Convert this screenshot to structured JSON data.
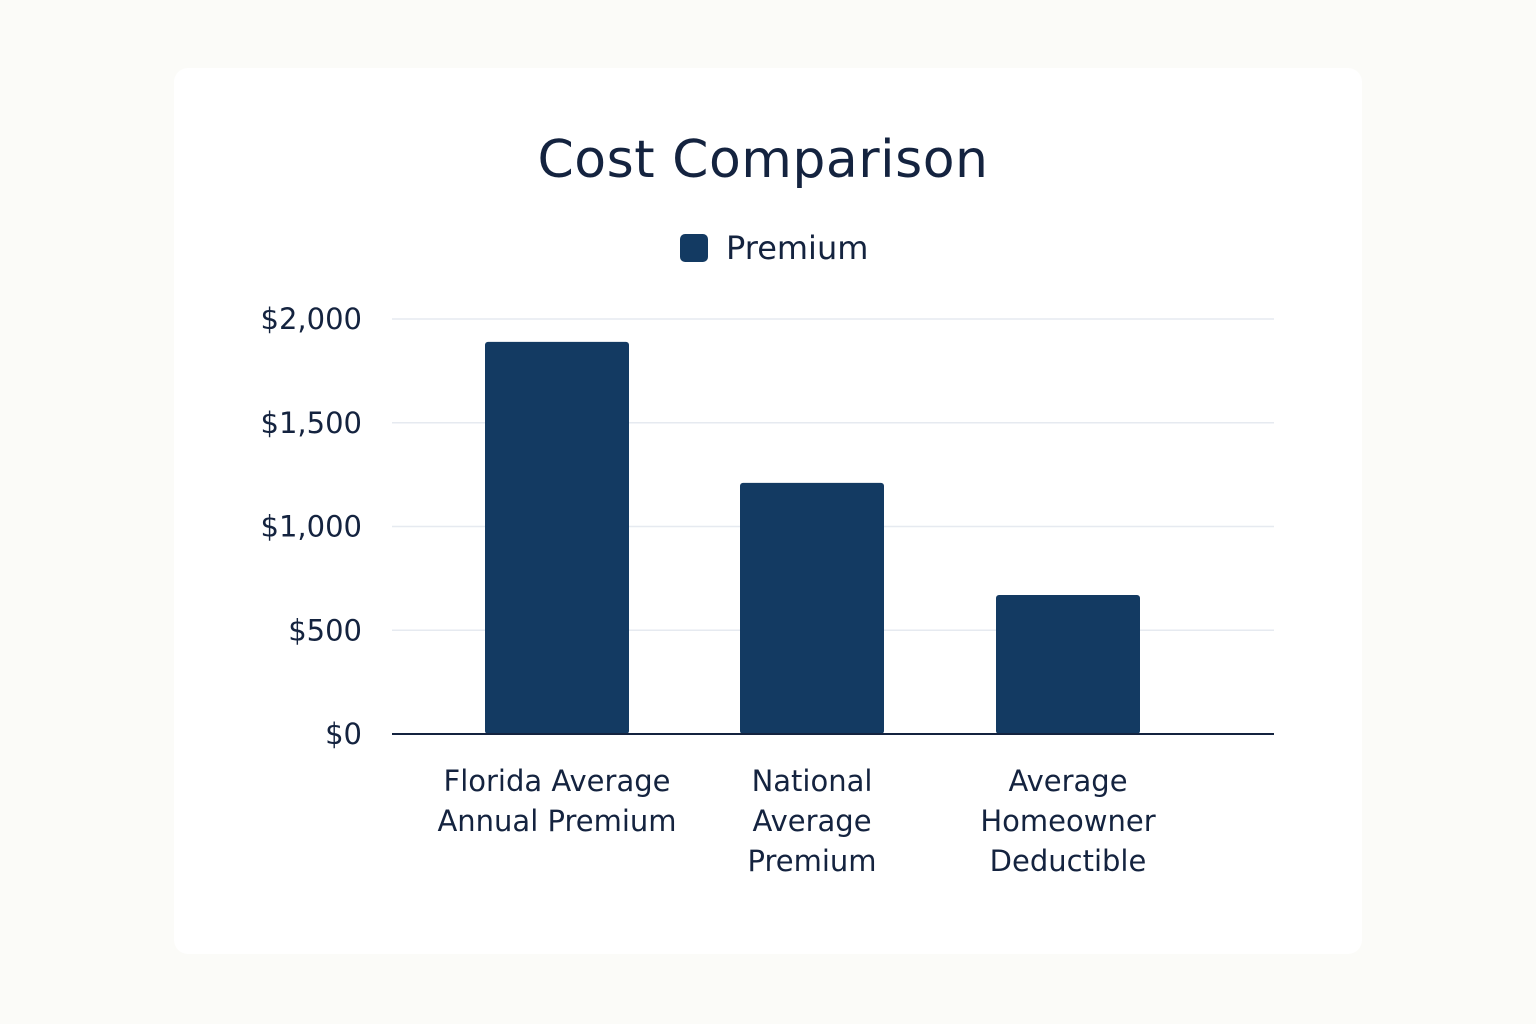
{
  "colors": {
    "bar": "#133a62",
    "grid": "#e6eaf0",
    "axis": "#14233f",
    "text": "#14233f"
  },
  "chart_data": {
    "type": "bar",
    "title": "Cost Comparison",
    "legend": {
      "position": "top",
      "entries": [
        "Premium"
      ]
    },
    "categories": [
      [
        "Florida Average",
        "Annual Premium"
      ],
      [
        "National",
        "Average",
        "Premium"
      ],
      [
        "Average",
        "Homeowner",
        "Deductible"
      ]
    ],
    "series": [
      {
        "name": "Premium",
        "values": [
          1890,
          1210,
          670
        ]
      }
    ],
    "ylim": [
      0,
      2000
    ],
    "yticks": [
      0,
      500,
      1000,
      1500,
      2000
    ],
    "ytick_labels": [
      "$0",
      "$500",
      "$1,000",
      "$1,500",
      "$2,000"
    ],
    "grid": true,
    "xlabel": "",
    "ylabel": ""
  }
}
